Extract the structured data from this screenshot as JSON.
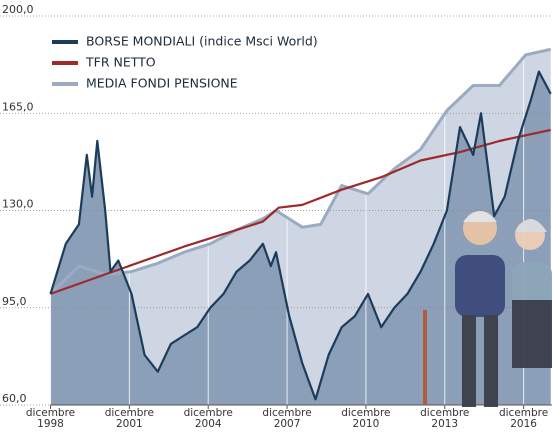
{
  "chart_data": {
    "type": "line",
    "xlim": [
      1998.9,
      2018.0
    ],
    "ylim": [
      60,
      200
    ],
    "yticks": [
      {
        "value": 60,
        "label": "60,0"
      },
      {
        "value": 95,
        "label": "95,0"
      },
      {
        "value": 130,
        "label": "130,0"
      },
      {
        "value": 165,
        "label": "165,0"
      },
      {
        "value": 200,
        "label": "200,0"
      }
    ],
    "xticks": [
      {
        "value": 1998.92,
        "label": "dicembre 1998"
      },
      {
        "value": 2001.92,
        "label": "dicembre 2001"
      },
      {
        "value": 2004.92,
        "label": "dicembre 2004"
      },
      {
        "value": 2007.92,
        "label": "dicembre 2007"
      },
      {
        "value": 2010.92,
        "label": "dicembre 2010"
      },
      {
        "value": 2013.92,
        "label": "dicembre 2013"
      },
      {
        "value": 2016.92,
        "label": "dicembre 2016"
      }
    ],
    "grid": true,
    "legend": "upper left",
    "series": [
      {
        "name": "BORSE MONDIALI (indice Msci World)",
        "color": "#1c3d5a",
        "x": [
          1998.92,
          1999.5,
          2000.0,
          2000.3,
          2000.5,
          2000.7,
          2001.0,
          2001.2,
          2001.5,
          2002.0,
          2002.5,
          2003.0,
          2003.5,
          2004.0,
          2004.5,
          2005.0,
          2005.5,
          2006.0,
          2006.5,
          2007.0,
          2007.3,
          2007.5,
          2008.0,
          2008.5,
          2009.0,
          2009.5,
          2010.0,
          2010.5,
          2011.0,
          2011.5,
          2012.0,
          2012.5,
          2013.0,
          2013.5,
          2014.0,
          2014.5,
          2015.0,
          2015.3,
          2015.8,
          2016.2,
          2016.7,
          2017.2,
          2017.5,
          2017.95
        ],
        "values": [
          100,
          118,
          125,
          150,
          135,
          155,
          130,
          108,
          112,
          100,
          78,
          72,
          82,
          85,
          88,
          95,
          100,
          108,
          112,
          118,
          110,
          115,
          92,
          75,
          62,
          78,
          88,
          92,
          100,
          88,
          95,
          100,
          108,
          118,
          130,
          160,
          150,
          165,
          128,
          135,
          155,
          170,
          180,
          172
        ]
      },
      {
        "name": "TFR NETTO",
        "color": "#9e2a2b",
        "x": [
          1998.92,
          2001.0,
          2004.0,
          2007.0,
          2007.6,
          2008.5,
          2010.0,
          2011.5,
          2013.0,
          2014.5,
          2016.0,
          2017.95
        ],
        "values": [
          100,
          107,
          117,
          126,
          131,
          132,
          137.5,
          142,
          148,
          151,
          155,
          159
        ]
      },
      {
        "name": "MEDIA FONDI PENSIONE",
        "color": "#9aabc2",
        "x": [
          1998.92,
          2000.0,
          2001.0,
          2002.0,
          2003.0,
          2004.0,
          2005.0,
          2006.0,
          2007.0,
          2007.5,
          2008.5,
          2009.2,
          2010.0,
          2011.0,
          2012.0,
          2013.0,
          2014.0,
          2015.0,
          2016.0,
          2017.0,
          2017.95
        ],
        "values": [
          100,
          110,
          107,
          108,
          111,
          115,
          118,
          123,
          127,
          130,
          124,
          125,
          139,
          136,
          145,
          152,
          166,
          175,
          175,
          186,
          188
        ]
      }
    ]
  }
}
